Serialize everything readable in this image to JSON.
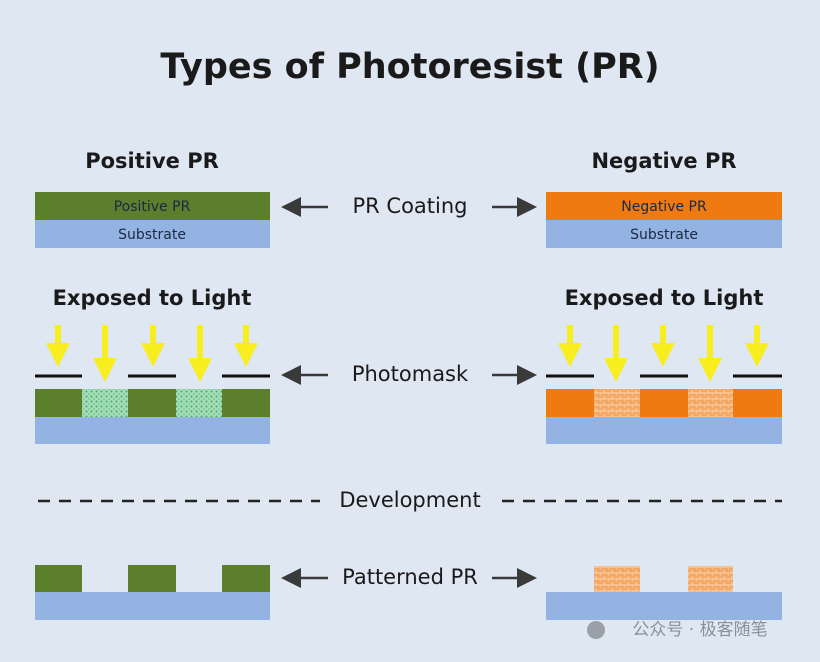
{
  "title": "Types of Photoresist (PR)",
  "left": {
    "heading": "Positive PR",
    "layer_label": "Positive PR",
    "substrate_label": "Substrate",
    "exposure_heading": "Exposed to Light"
  },
  "right": {
    "heading": "Negative PR",
    "layer_label": "Negative PR",
    "substrate_label": "Substrate",
    "exposure_heading": "Exposed to Light"
  },
  "steps": [
    "PR Coating",
    "Photomask",
    "Development",
    "Patterned PR"
  ],
  "watermark": "公众号 · 极客随笔"
}
